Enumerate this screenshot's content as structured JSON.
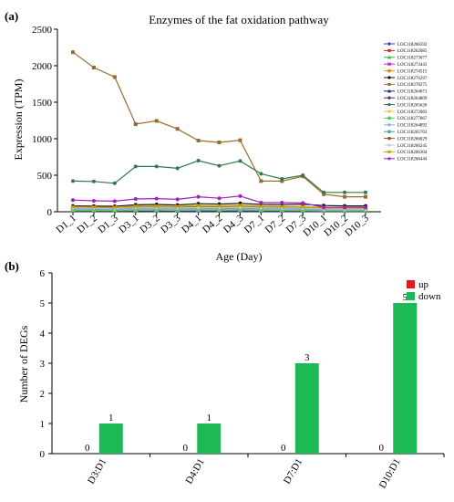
{
  "panel_a": {
    "label": "(a)",
    "chart_data": {
      "type": "line",
      "title": "Enzymes of the fat oxidation pathway",
      "xlabel": "Age (Day)",
      "ylabel": "Expression (TPM)",
      "ylim": [
        0,
        2500
      ],
      "yticks": [
        0,
        500,
        1000,
        1500,
        2000,
        2500
      ],
      "categories": [
        "D1_1",
        "D1_2",
        "D1_3",
        "D3_1",
        "D3_2",
        "D3_3",
        "D4_1",
        "D4_2",
        "D4_3",
        "D7_1",
        "D7_2",
        "D7_3",
        "D10_1",
        "D10_2",
        "D10_3"
      ],
      "legend_position": "right",
      "series": [
        {
          "name": "LOC118266592",
          "color": "#1f3fd6",
          "marker": "diamond",
          "values": [
            5,
            5,
            5,
            8,
            6,
            5,
            7,
            6,
            6,
            5,
            5,
            5,
            4,
            4,
            4
          ]
        },
        {
          "name": "LOC118262085",
          "color": "#e0241b",
          "marker": "square",
          "values": [
            40,
            38,
            36,
            42,
            44,
            40,
            48,
            46,
            50,
            44,
            42,
            40,
            30,
            28,
            28
          ]
        },
        {
          "name": "LOC118273677",
          "color": "#2db82d",
          "marker": "triangle",
          "values": [
            15,
            14,
            13,
            16,
            17,
            15,
            18,
            17,
            19,
            16,
            15,
            15,
            12,
            11,
            11
          ]
        },
        {
          "name": "LOC118274443",
          "color": "#c21fc2",
          "marker": "x",
          "values": [
            30,
            28,
            27,
            32,
            33,
            30,
            35,
            34,
            36,
            31,
            30,
            29,
            22,
            21,
            21
          ]
        },
        {
          "name": "LOC118274515",
          "color": "#f08a00",
          "marker": "star",
          "values": [
            55,
            52,
            50,
            58,
            60,
            56,
            65,
            62,
            68,
            58,
            55,
            54,
            40,
            38,
            38
          ]
        },
        {
          "name": "LOC118276297",
          "color": "#111111",
          "marker": "circle",
          "values": [
            80,
            78,
            75,
            95,
            100,
            92,
            110,
            105,
            115,
            100,
            98,
            102,
            85,
            80,
            80
          ]
        },
        {
          "name": "LOC118278275",
          "color": "#9b6a2f",
          "marker": "square",
          "values": [
            2185,
            1975,
            1845,
            1200,
            1245,
            1135,
            975,
            950,
            980,
            420,
            420,
            485,
            240,
            205,
            205
          ]
        },
        {
          "name": "LOC118264671",
          "color": "#1a1a8c",
          "marker": "triangle",
          "values": [
            20,
            19,
            18,
            22,
            23,
            21,
            25,
            24,
            26,
            22,
            21,
            20,
            15,
            14,
            14
          ]
        },
        {
          "name": "LOC118264809",
          "color": "#5a1f6e",
          "marker": "diamond",
          "values": [
            10,
            9,
            9,
            11,
            11,
            10,
            12,
            12,
            13,
            11,
            10,
            10,
            8,
            7,
            7
          ]
        },
        {
          "name": "LOC118265626",
          "color": "#2f7a4a",
          "marker": "circle",
          "values": [
            420,
            415,
            390,
            620,
            620,
            595,
            700,
            630,
            695,
            520,
            450,
            500,
            265,
            265,
            265
          ]
        },
        {
          "name": "LOC118272083",
          "color": "#f2c74a",
          "marker": "x",
          "values": [
            25,
            24,
            23,
            27,
            28,
            26,
            30,
            29,
            31,
            27,
            26,
            25,
            19,
            18,
            18
          ]
        },
        {
          "name": "LOC118277867",
          "color": "#4dd14d",
          "marker": "star",
          "values": [
            18,
            17,
            16,
            20,
            21,
            19,
            22,
            21,
            23,
            20,
            19,
            18,
            14,
            13,
            13
          ]
        },
        {
          "name": "LOC118264892",
          "color": "#8fa8e0",
          "marker": "diamond",
          "values": [
            35,
            33,
            32,
            37,
            38,
            35,
            40,
            39,
            42,
            37,
            35,
            34,
            26,
            25,
            25
          ]
        },
        {
          "name": "LOC118265763",
          "color": "#3aa6a6",
          "marker": "square",
          "values": [
            45,
            43,
            41,
            48,
            50,
            46,
            53,
            51,
            55,
            48,
            46,
            45,
            34,
            33,
            33
          ]
        },
        {
          "name": "LOC118266029",
          "color": "#8c5a24",
          "marker": "square",
          "values": [
            60,
            58,
            55,
            70,
            72,
            66,
            78,
            74,
            82,
            70,
            66,
            65,
            50,
            48,
            48
          ]
        },
        {
          "name": "LOC118266245",
          "color": "#c8c8c8",
          "marker": "circle",
          "values": [
            50,
            48,
            46,
            54,
            55,
            51,
            58,
            56,
            60,
            53,
            51,
            50,
            38,
            36,
            36
          ]
        },
        {
          "name": "LOC118266304",
          "color": "#c8a000",
          "marker": "x",
          "values": [
            65,
            62,
            60,
            75,
            78,
            72,
            85,
            80,
            88,
            75,
            72,
            70,
            55,
            52,
            52
          ]
        },
        {
          "name": "LOC118266444",
          "color": "#a020c0",
          "marker": "circle",
          "values": [
            160,
            150,
            145,
            175,
            180,
            170,
            205,
            185,
            215,
            125,
            125,
            120,
            60,
            60,
            60
          ]
        }
      ]
    }
  },
  "panel_b": {
    "label": "(b)",
    "chart_data": {
      "type": "bar",
      "ylabel": "Number of DEGs",
      "ylim": [
        0,
        6
      ],
      "yticks": [
        0,
        1,
        2,
        3,
        4,
        5,
        6
      ],
      "categories": [
        "D3:D1",
        "D4:D1",
        "D7:D1",
        "D10:D1"
      ],
      "legend_position": "top-right",
      "series": [
        {
          "name": "up",
          "color": "#e31a1c",
          "values": [
            0,
            0,
            0,
            0
          ]
        },
        {
          "name": "down",
          "color": "#1db954",
          "values": [
            1,
            1,
            3,
            5
          ]
        }
      ]
    }
  }
}
